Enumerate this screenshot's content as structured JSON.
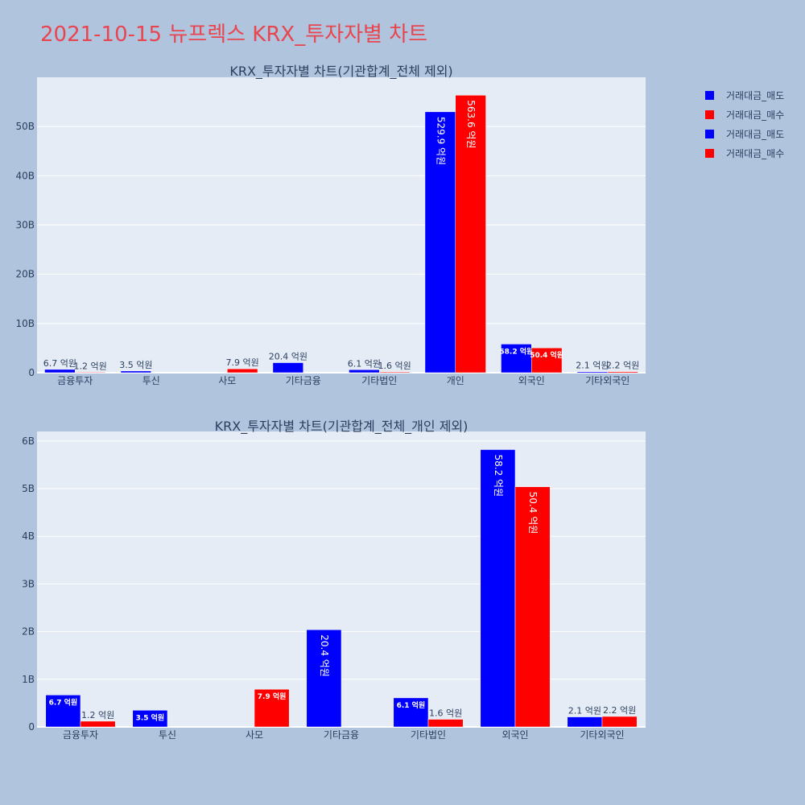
{
  "page": {
    "title": "2021-10-15 뉴프렉스 KRX_투자자별 차트"
  },
  "colors": {
    "sell": "#0000ff",
    "buy": "#ff0000",
    "plot_bg": "#e5ecf6",
    "paper_bg": "#b0c4de",
    "text": "#2a3f5f",
    "title": "#e8454f"
  },
  "legend": [
    {
      "label": "거래대금_매도",
      "color": "#0000ff"
    },
    {
      "label": "거래대금_매수",
      "color": "#ff0000"
    },
    {
      "label": "거래대금_매도",
      "color": "#0000ff"
    },
    {
      "label": "거래대금_매수",
      "color": "#ff0000"
    }
  ],
  "chart_data": [
    {
      "type": "bar",
      "title": "KRX_투자자별 차트(기관합계_전체 제외)",
      "categories": [
        "금융투자",
        "투신",
        "사모",
        "기타금융",
        "기타법인",
        "개인",
        "외국인",
        "기타외국인"
      ],
      "series": [
        {
          "name": "거래대금_매도",
          "color": "#0000ff",
          "values": [
            670000000,
            350000000,
            0,
            2040000000,
            610000000,
            52990000000,
            5820000000,
            210000000
          ],
          "labels": [
            "6.7 억원",
            "3.5 억원",
            "",
            "20.4 억원",
            "6.1 억원",
            "529.9 억원",
            "58.2 억원",
            "2.1 억원"
          ]
        },
        {
          "name": "거래대금_매수",
          "color": "#ff0000",
          "values": [
            120000000,
            0,
            790000000,
            0,
            160000000,
            56360000000,
            5040000000,
            220000000
          ],
          "labels": [
            "1.2 억원",
            "",
            "7.9 억원",
            "",
            "1.6 억원",
            "563.6 억원",
            "50.4 억원",
            "2.2 억원"
          ]
        }
      ],
      "ylim": [
        0,
        60000000000
      ],
      "yticks": [
        0,
        10000000000,
        20000000000,
        30000000000,
        40000000000,
        50000000000
      ],
      "ytick_labels": [
        "0",
        "10B",
        "20B",
        "30B",
        "40B",
        "50B"
      ],
      "grid": true,
      "legend_position": "right"
    },
    {
      "type": "bar",
      "title": "KRX_투자자별 차트(기관합계_전체_개인 제외)",
      "categories": [
        "금융투자",
        "투신",
        "사모",
        "기타금융",
        "기타법인",
        "외국인",
        "기타외국인"
      ],
      "series": [
        {
          "name": "거래대금_매도",
          "color": "#0000ff",
          "values": [
            670000000,
            350000000,
            0,
            2040000000,
            610000000,
            5820000000,
            210000000
          ],
          "labels": [
            "6.7 억원",
            "3.5 억원",
            "",
            "20.4 억원",
            "6.1 억원",
            "58.2 억원",
            "2.1 억원"
          ]
        },
        {
          "name": "거래대금_매수",
          "color": "#ff0000",
          "values": [
            120000000,
            0,
            790000000,
            0,
            160000000,
            5040000000,
            220000000
          ],
          "labels": [
            "1.2 억원",
            "",
            "7.9 억원",
            "",
            "1.6 억원",
            "50.4 억원",
            "2.2 억원"
          ]
        }
      ],
      "ylim": [
        0,
        6200000000
      ],
      "yticks": [
        0,
        1000000000,
        2000000000,
        3000000000,
        4000000000,
        5000000000,
        6000000000
      ],
      "ytick_labels": [
        "0",
        "1B",
        "2B",
        "3B",
        "4B",
        "5B",
        "6B"
      ],
      "grid": true,
      "legend_position": "right"
    }
  ]
}
